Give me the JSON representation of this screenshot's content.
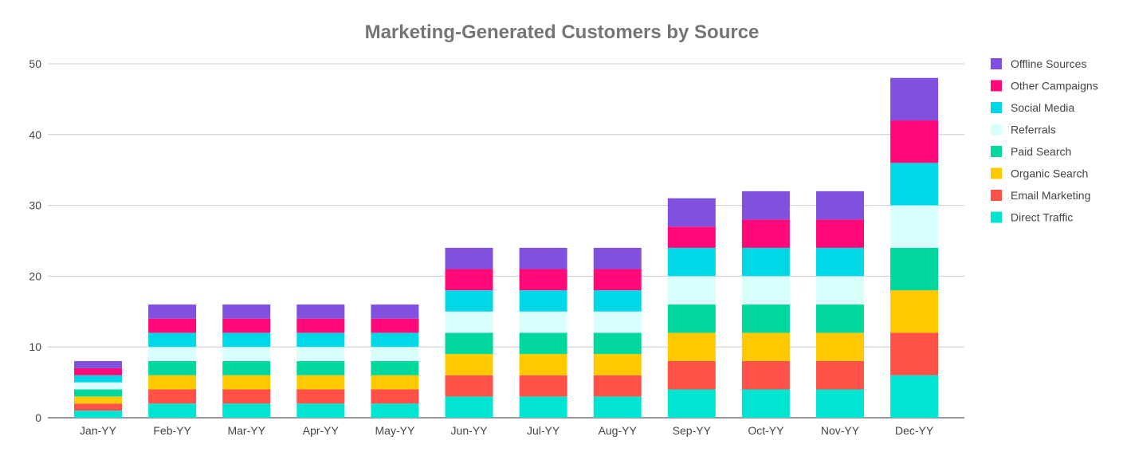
{
  "chart_data": {
    "type": "bar",
    "stacked": true,
    "title": "Marketing-Generated Customers by Source",
    "xlabel": "",
    "ylabel": "",
    "ylim": [
      0,
      50
    ],
    "yticks": [
      0,
      10,
      20,
      30,
      40,
      50
    ],
    "grid": true,
    "legend_position": "right",
    "categories": [
      "Jan-YY",
      "Feb-YY",
      "Mar-YY",
      "Apr-YY",
      "May-YY",
      "Jun-YY",
      "Jul-YY",
      "Aug-YY",
      "Sep-YY",
      "Oct-YY",
      "Nov-YY",
      "Dec-YY"
    ],
    "series": [
      {
        "name": "Direct Traffic",
        "color": "#00E5D1",
        "values": [
          1,
          2,
          2,
          2,
          2,
          3,
          3,
          3,
          4,
          4,
          4,
          6
        ]
      },
      {
        "name": "Email Marketing",
        "color": "#FF5147",
        "values": [
          1,
          2,
          2,
          2,
          2,
          3,
          3,
          3,
          4,
          4,
          4,
          6
        ]
      },
      {
        "name": "Organic Search",
        "color": "#FFC900",
        "values": [
          1,
          2,
          2,
          2,
          2,
          3,
          3,
          3,
          4,
          4,
          4,
          6
        ]
      },
      {
        "name": "Paid Search",
        "color": "#00D89E",
        "values": [
          1,
          2,
          2,
          2,
          2,
          3,
          3,
          3,
          4,
          4,
          4,
          6
        ]
      },
      {
        "name": "Referrals",
        "color": "#D8FFFA",
        "values": [
          1,
          2,
          2,
          2,
          2,
          3,
          3,
          3,
          4,
          4,
          4,
          6
        ]
      },
      {
        "name": "Social Media",
        "color": "#00D8E8",
        "values": [
          1,
          2,
          2,
          2,
          2,
          3,
          3,
          3,
          4,
          4,
          4,
          6
        ]
      },
      {
        "name": "Other Campaigns",
        "color": "#FF0A78",
        "values": [
          1,
          2,
          2,
          2,
          2,
          3,
          3,
          3,
          3,
          4,
          4,
          6
        ]
      },
      {
        "name": "Offline Sources",
        "color": "#7F51DE",
        "values": [
          1,
          2,
          2,
          2,
          2,
          3,
          3,
          3,
          4,
          4,
          4,
          6
        ]
      }
    ]
  }
}
